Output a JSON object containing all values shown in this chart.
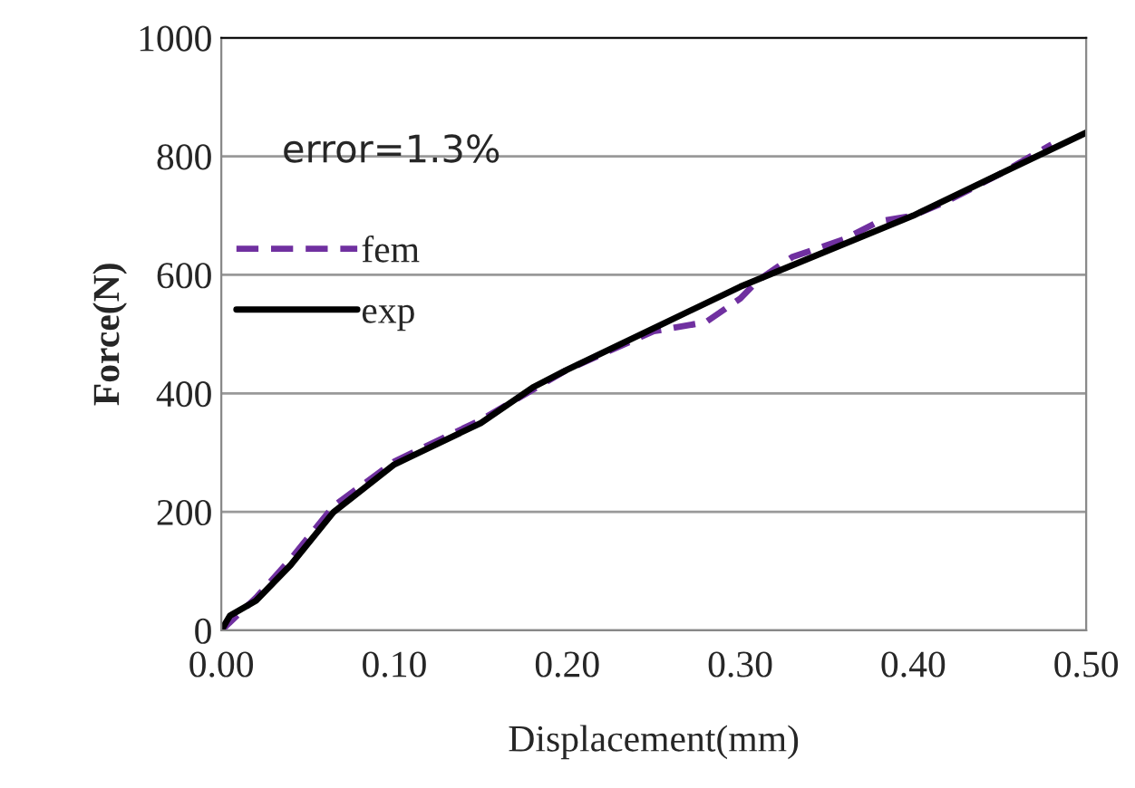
{
  "chart_data": {
    "type": "line",
    "xlabel": "Displacement(mm)",
    "ylabel": "Force(N)",
    "xlim": [
      0,
      0.5
    ],
    "ylim": [
      0,
      1000
    ],
    "xticks": [
      {
        "value": 0,
        "label": "0.00"
      },
      {
        "value": 0.1,
        "label": "0.10"
      },
      {
        "value": 0.2,
        "label": "0.20"
      },
      {
        "value": 0.3,
        "label": "0.30"
      },
      {
        "value": 0.4,
        "label": "0.40"
      },
      {
        "value": 0.5,
        "label": "0.50"
      }
    ],
    "yticks": [
      0,
      200,
      400,
      600,
      800,
      1000
    ],
    "grid": "y",
    "legend": "top left",
    "marker": "none",
    "annotations": [
      "error=1.3%"
    ],
    "series": [
      {
        "name": "fem",
        "color": "#7030a0",
        "line_style": "dashed",
        "x": [
          0,
          0.02,
          0.04,
          0.065,
          0.1,
          0.15,
          0.2,
          0.25,
          0.28,
          0.3,
          0.31,
          0.33,
          0.36,
          0.38,
          0.4,
          0.42,
          0.45,
          0.48
        ],
        "values": [
          0,
          55,
          120,
          210,
          285,
          355,
          440,
          505,
          520,
          560,
          590,
          630,
          660,
          690,
          700,
          725,
          770,
          820
        ]
      },
      {
        "name": "exp",
        "color": "#000000",
        "line_style": "solid",
        "x": [
          0,
          0.005,
          0.02,
          0.04,
          0.065,
          0.1,
          0.15,
          0.18,
          0.2,
          0.25,
          0.3,
          0.35,
          0.4,
          0.45,
          0.5
        ],
        "values": [
          0,
          25,
          50,
          110,
          200,
          280,
          350,
          410,
          440,
          510,
          580,
          640,
          700,
          770,
          840
        ]
      }
    ]
  }
}
